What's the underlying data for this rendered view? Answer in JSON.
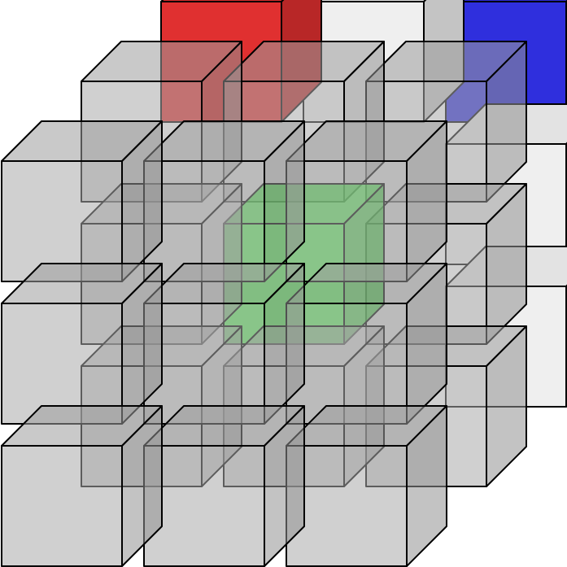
{
  "diagram": {
    "colors": {
      "red": "#e03030",
      "white": "#efefef",
      "blue": "#2f2fdd",
      "green": "#2fdd2f",
      "gray": "#aaaaaa",
      "edge": "#000000",
      "background": "#ffffff"
    },
    "grid_size": [
      3,
      3,
      3
    ],
    "layers": [
      {
        "name": "back",
        "cubes": [
          {
            "row": 0,
            "col": 0,
            "color": "red"
          },
          {
            "row": 0,
            "col": 1,
            "color": "white"
          },
          {
            "row": 0,
            "col": 2,
            "color": "blue"
          },
          {
            "row": 1,
            "col": 0,
            "color": "none"
          },
          {
            "row": 1,
            "col": 1,
            "color": "none"
          },
          {
            "row": 1,
            "col": 2,
            "color": "white"
          },
          {
            "row": 2,
            "col": 0,
            "color": "none"
          },
          {
            "row": 2,
            "col": 1,
            "color": "none"
          },
          {
            "row": 2,
            "col": 2,
            "color": "white"
          }
        ]
      },
      {
        "name": "middle",
        "cubes": [
          {
            "row": 0,
            "col": 0,
            "color": "gray"
          },
          {
            "row": 0,
            "col": 1,
            "color": "gray"
          },
          {
            "row": 0,
            "col": 2,
            "color": "gray"
          },
          {
            "row": 1,
            "col": 0,
            "color": "gray"
          },
          {
            "row": 1,
            "col": 1,
            "color": "green"
          },
          {
            "row": 1,
            "col": 2,
            "color": "gray"
          },
          {
            "row": 2,
            "col": 0,
            "color": "gray"
          },
          {
            "row": 2,
            "col": 1,
            "color": "gray"
          },
          {
            "row": 2,
            "col": 2,
            "color": "gray"
          }
        ]
      },
      {
        "name": "front",
        "cubes": [
          {
            "row": 0,
            "col": 0,
            "color": "gray"
          },
          {
            "row": 0,
            "col": 1,
            "color": "gray"
          },
          {
            "row": 0,
            "col": 2,
            "color": "gray"
          },
          {
            "row": 1,
            "col": 0,
            "color": "gray"
          },
          {
            "row": 1,
            "col": 1,
            "color": "gray"
          },
          {
            "row": 1,
            "col": 2,
            "color": "gray"
          },
          {
            "row": 2,
            "col": 0,
            "color": "gray"
          },
          {
            "row": 2,
            "col": 1,
            "color": "gray"
          },
          {
            "row": 2,
            "col": 2,
            "color": "gray"
          }
        ]
      }
    ]
  }
}
